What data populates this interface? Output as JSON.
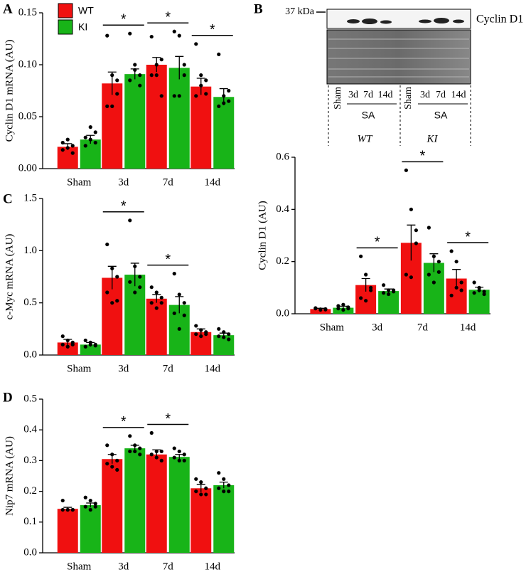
{
  "chart_data": [
    {
      "type": "bar",
      "panel": "A",
      "ylabel": "Cyclin D1 mRNA (AU)",
      "legend": "upper left",
      "categories": [
        "Sham",
        "3d",
        "7d",
        "14d"
      ],
      "ylim": [
        0,
        0.15
      ],
      "yticks": [
        {
          "value": 0,
          "label": "0.00"
        },
        {
          "value": 0.05,
          "label": "0.05"
        },
        {
          "value": 0.1,
          "label": "0.10"
        },
        {
          "value": 0.15,
          "label": "0.15"
        }
      ],
      "annotations": [
        null,
        "*",
        "*",
        "*"
      ],
      "series": [
        {
          "name": "WT",
          "color": "#f01010",
          "values": [
            0.021,
            0.082,
            0.1,
            0.079
          ],
          "errors": [
            0.003,
            0.011,
            0.007,
            0.008
          ],
          "points": [
            [
              0.018,
              0.02,
              0.022,
              0.025,
              0.028,
              0.015
            ],
            [
              0.128,
              0.09,
              0.072,
              0.06,
              0.06,
              0.085
            ],
            [
              0.127,
              0.1,
              0.105,
              0.09,
              0.09,
              0.07
            ],
            [
              0.12,
              0.09,
              0.072,
              0.07,
              0.08,
              0.085
            ]
          ]
        },
        {
          "name": "KI",
          "color": "#18b418",
          "values": [
            0.028,
            0.091,
            0.097,
            0.069
          ],
          "errors": [
            0.004,
            0.005,
            0.011,
            0.008
          ],
          "points": [
            [
              0.03,
              0.04,
              0.025,
              0.022,
              0.028,
              0.035
            ],
            [
              0.13,
              0.1,
              0.09,
              0.085,
              0.095,
              0.08
            ],
            [
              0.132,
              0.128,
              0.1,
              0.07,
              0.07,
              0.09
            ],
            [
              0.11,
              0.07,
              0.065,
              0.06,
              0.063,
              0.075
            ]
          ]
        }
      ]
    },
    {
      "type": "bar",
      "panel": "B",
      "ylabel": "Cyclin D1 (AU)",
      "categories": [
        "Sham",
        "3d",
        "7d",
        "14d"
      ],
      "ylim": [
        0,
        0.6
      ],
      "yticks": [
        {
          "value": 0,
          "label": "0.0"
        },
        {
          "value": 0.2,
          "label": "0.2"
        },
        {
          "value": 0.4,
          "label": "0.4"
        },
        {
          "value": 0.6,
          "label": "0.6"
        }
      ],
      "annotations": [
        null,
        "*",
        "*",
        "*"
      ],
      "series": [
        {
          "color": "#f01010",
          "values": [
            0.018,
            0.11,
            0.272,
            0.135
          ],
          "errors": [
            0.003,
            0.025,
            0.068,
            0.035
          ],
          "points": [
            [
              0.02,
              0.015,
              0.018,
              0.022,
              0.017,
              0.016
            ],
            [
              0.22,
              0.15,
              0.1,
              0.06,
              0.05,
              0.09
            ],
            [
              0.55,
              0.4,
              0.32,
              0.15,
              0.14,
              0.27
            ],
            [
              0.24,
              0.2,
              0.12,
              0.07,
              0.1,
              0.09
            ]
          ]
        },
        {
          "color": "#18b418",
          "values": [
            0.023,
            0.087,
            0.195,
            0.092
          ],
          "errors": [
            0.006,
            0.008,
            0.035,
            0.01
          ],
          "points": [
            [
              0.03,
              0.035,
              0.02,
              0.02,
              0.015,
              0.025
            ],
            [
              0.11,
              0.09,
              0.085,
              0.08,
              0.075,
              0.09
            ],
            [
              0.33,
              0.22,
              0.2,
              0.15,
              0.12,
              0.16
            ],
            [
              0.12,
              0.1,
              0.085,
              0.08,
              0.09,
              0.075
            ]
          ]
        }
      ]
    },
    {
      "type": "bar",
      "panel": "C",
      "ylabel": "c-Myc mRNA (AU)",
      "categories": [
        "Sham",
        "3d",
        "7d",
        "14d"
      ],
      "ylim": [
        0,
        1.5
      ],
      "yticks": [
        {
          "value": 0,
          "label": "0.0"
        },
        {
          "value": 0.5,
          "label": "0.5"
        },
        {
          "value": 1,
          "label": "1.0"
        },
        {
          "value": 1.5,
          "label": "1.5"
        }
      ],
      "annotations": [
        null,
        "*",
        "*",
        null
      ],
      "series": [
        {
          "color": "#f01010",
          "values": [
            0.12,
            0.74,
            0.54,
            0.22
          ],
          "errors": [
            0.03,
            0.11,
            0.04,
            0.03
          ],
          "points": [
            [
              0.18,
              0.14,
              0.12,
              0.1,
              0.08,
              0.1
            ],
            [
              1.06,
              0.83,
              0.75,
              0.6,
              0.5,
              0.52
            ],
            [
              0.65,
              0.6,
              0.55,
              0.5,
              0.45,
              0.5
            ],
            [
              0.28,
              0.24,
              0.22,
              0.2,
              0.18,
              0.2
            ]
          ]
        },
        {
          "color": "#18b418",
          "values": [
            0.1,
            0.77,
            0.48,
            0.19
          ],
          "errors": [
            0.02,
            0.11,
            0.08,
            0.02
          ],
          "points": [
            [
              0.14,
              0.12,
              0.1,
              0.08,
              0.1,
              0.09
            ],
            [
              1.29,
              0.85,
              0.75,
              0.7,
              0.6,
              0.65
            ],
            [
              0.78,
              0.58,
              0.5,
              0.4,
              0.25,
              0.38
            ],
            [
              0.25,
              0.22,
              0.2,
              0.18,
              0.17,
              0.15
            ]
          ]
        }
      ]
    },
    {
      "type": "bar",
      "panel": "D",
      "ylabel": "Nip7 mRNA (AU)",
      "categories": [
        "Sham",
        "3d",
        "7d",
        "14d"
      ],
      "ylim": [
        0,
        0.5
      ],
      "yticks": [
        {
          "value": 0,
          "label": "0.0"
        },
        {
          "value": 0.1,
          "label": "0.1"
        },
        {
          "value": 0.2,
          "label": "0.2"
        },
        {
          "value": 0.3,
          "label": "0.3"
        },
        {
          "value": 0.4,
          "label": "0.4"
        },
        {
          "value": 0.5,
          "label": "0.5"
        }
      ],
      "annotations": [
        null,
        "*",
        "*",
        null
      ],
      "series": [
        {
          "color": "#f01010",
          "values": [
            0.143,
            0.305,
            0.32,
            0.21
          ],
          "errors": [
            0.005,
            0.015,
            0.015,
            0.013
          ],
          "points": [
            [
              0.17,
              0.14,
              0.14,
              0.14,
              0.14,
              0.14
            ],
            [
              0.35,
              0.32,
              0.3,
              0.29,
              0.28,
              0.27
            ],
            [
              0.39,
              0.33,
              0.33,
              0.32,
              0.31,
              0.3
            ],
            [
              0.24,
              0.23,
              0.21,
              0.2,
              0.19,
              0.19
            ]
          ]
        },
        {
          "color": "#18b418",
          "values": [
            0.155,
            0.34,
            0.312,
            0.22
          ],
          "errors": [
            0.007,
            0.01,
            0.008,
            0.01
          ],
          "points": [
            [
              0.18,
              0.17,
              0.16,
              0.15,
              0.14,
              0.15
            ],
            [
              0.38,
              0.35,
              0.34,
              0.33,
              0.33,
              0.32
            ],
            [
              0.34,
              0.33,
              0.32,
              0.31,
              0.3,
              0.3
            ],
            [
              0.26,
              0.24,
              0.22,
              0.21,
              0.2,
              0.2
            ]
          ]
        }
      ]
    }
  ],
  "blot": {
    "marker": "37 kDa",
    "label": "Cyclin D1",
    "groups": [
      {
        "lanes": [
          "Sham",
          "3d",
          "7d",
          "14d"
        ],
        "treatment": "SA",
        "genotype": "WT"
      },
      {
        "lanes": [
          "Sham",
          "3d",
          "7d",
          "14d"
        ],
        "treatment": "SA",
        "genotype": "KI"
      }
    ]
  }
}
